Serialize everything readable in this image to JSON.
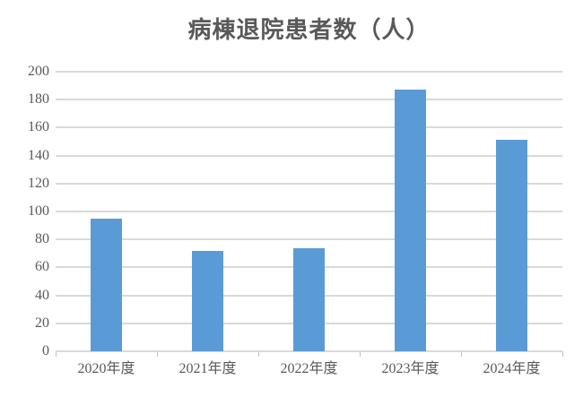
{
  "title": "病棟退院患者数（人）",
  "colors": {
    "bar": "#5B9BD5",
    "gridline": "#D9D9D9",
    "text": "#595959",
    "background": "#FFFFFF"
  },
  "chart_data": {
    "type": "bar",
    "title": "病棟退院患者数（人）",
    "categories": [
      "2020年度",
      "2021年度",
      "2022年度",
      "2023年度",
      "2024年度"
    ],
    "values": [
      95,
      72,
      74,
      187,
      151
    ],
    "xlabel": "",
    "ylabel": "",
    "ylim": [
      0,
      200
    ],
    "ytick_step": 20,
    "ytick_labels": [
      "0",
      "20",
      "40",
      "60",
      "80",
      "100",
      "120",
      "140",
      "160",
      "180",
      "200"
    ],
    "grid": true,
    "legend": false,
    "layout": {
      "bar_color": "#5B9BD5",
      "gridline_color": "#D9D9D9",
      "label_color": "#595959"
    }
  }
}
